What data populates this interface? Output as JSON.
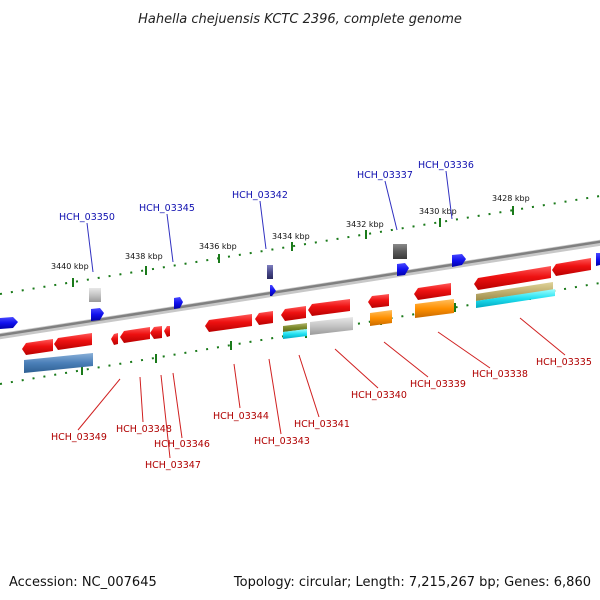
{
  "title": "Hahella chejuensis KCTC 2396, complete genome",
  "footer": {
    "accession": "Accession: NC_007645",
    "summary": "Topology: circular; Length: 7,215,267 bp; Genes: 6,860"
  },
  "scale_labels": [
    {
      "text": "3440 kbp"
    },
    {
      "text": "3438 kbp"
    },
    {
      "text": "3436 kbp"
    },
    {
      "text": "3434 kbp"
    },
    {
      "text": "3432 kbp"
    },
    {
      "text": "3430 kbp"
    },
    {
      "text": "3428 kbp"
    }
  ],
  "top_gene_labels": [
    {
      "text": "HCH_03350",
      "strand": "+"
    },
    {
      "text": "HCH_03345",
      "strand": "+"
    },
    {
      "text": "HCH_03342",
      "strand": "+"
    },
    {
      "text": "HCH_03337",
      "strand": "+"
    },
    {
      "text": "HCH_03336",
      "strand": "+"
    }
  ],
  "bottom_gene_labels": [
    {
      "text": "HCH_03349",
      "strand": "-"
    },
    {
      "text": "HCH_03348",
      "strand": "-"
    },
    {
      "text": "HCH_03346",
      "strand": "-"
    },
    {
      "text": "HCH_03347",
      "strand": "-"
    },
    {
      "text": "HCH_03344",
      "strand": "-"
    },
    {
      "text": "HCH_03343",
      "strand": "-"
    },
    {
      "text": "HCH_03341",
      "strand": "-"
    },
    {
      "text": "HCH_03340",
      "strand": "-"
    },
    {
      "text": "HCH_03339",
      "strand": "-"
    },
    {
      "text": "HCH_03338",
      "strand": "-"
    },
    {
      "text": "HCH_03335",
      "strand": "-"
    }
  ],
  "colors": {
    "forward_gene": "#1a1aee",
    "reverse_gene": "#ee1a1a",
    "backbone": "#888888",
    "tick": "#1a7a1a",
    "leader_blue": "#3030c0",
    "leader_red": "#d02020"
  }
}
